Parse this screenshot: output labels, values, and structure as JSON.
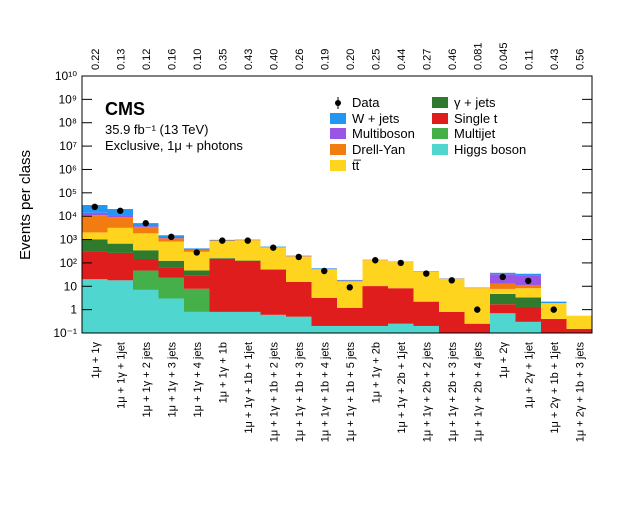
{
  "chart_data": {
    "type": "bar",
    "stacked": true,
    "log_y": true,
    "experiment": "CMS",
    "luminosity": "35.9 fb⁻¹ (13 TeV)",
    "selection": "Exclusive, 1μ + photons",
    "ylabel": "Events per class",
    "categories": [
      "1μ + 1γ",
      "1μ + 1γ + 1jet",
      "1μ + 1γ + 2 jets",
      "1μ + 1γ + 3 jets",
      "1μ + 1γ + 4 jets",
      "1μ + 1γ + 1b",
      "1μ + 1γ + 1b + 1jet",
      "1μ + 1γ + 1b + 2 jets",
      "1μ + 1γ + 1b + 3 jets",
      "1μ + 1γ + 1b + 4 jets",
      "1μ + 1γ + 1b + 5 jets",
      "1μ + 1γ + 2b",
      "1μ + 1γ + 2b + 1jet",
      "1μ + 1γ + 2b + 2 jets",
      "1μ + 1γ + 2b + 3 jets",
      "1μ + 1γ + 2b + 4 jets",
      "1μ + 2γ",
      "1μ + 2γ + 1jet",
      "1μ + 2γ + 1b + 1jet",
      "1μ + 2γ + 1b + 3 jets"
    ],
    "top_labels": [
      "0.22",
      "0.13",
      "0.12",
      "0.16",
      "0.10",
      "0.35",
      "0.43",
      "0.40",
      "0.26",
      "0.19",
      "0.20",
      "0.25",
      "0.44",
      "0.27",
      "0.46",
      "0.081",
      "0.045",
      "0.11",
      "0.43",
      "0.56"
    ],
    "series": [
      {
        "name": "Higgs boson",
        "color": "#4fd6cf",
        "values": [
          20,
          18,
          7,
          3,
          0.8,
          0.8,
          0.8,
          0.6,
          0.5,
          0.2,
          0.2,
          0.2,
          0.25,
          0.2,
          0.1,
          0.05,
          0.7,
          0.3,
          0.1,
          0.05
        ]
      },
      {
        "name": "Multijet",
        "color": "#45b04a",
        "values": [
          null,
          null,
          40,
          20,
          7,
          null,
          null,
          null,
          null,
          null,
          null,
          null,
          null,
          null,
          null,
          null,
          null,
          null,
          null,
          null
        ]
      },
      {
        "name": "Single t",
        "color": "#e01d1d",
        "values": [
          300,
          250,
          100,
          40,
          20,
          150,
          120,
          50,
          15,
          3,
          1,
          10,
          8,
          2,
          0.7,
          0.2,
          1,
          1,
          0.3,
          0.1
        ]
      },
      {
        "name": "γ + jets",
        "color": "#2f7a2c",
        "values": [
          700,
          400,
          200,
          60,
          20,
          10,
          5,
          3,
          null,
          null,
          null,
          null,
          null,
          null,
          null,
          null,
          3,
          2,
          null,
          null
        ]
      },
      {
        "name": "tt̅",
        "color": "#ffd41f",
        "values": [
          1000,
          2500,
          1500,
          700,
          250,
          700,
          800,
          400,
          170,
          50,
          15,
          120,
          100,
          40,
          20,
          8,
          3,
          5,
          1.5,
          0.4
        ]
      },
      {
        "name": "Drell-Yan",
        "color": "#f27c10",
        "values": [
          9000,
          6000,
          1500,
          300,
          60,
          50,
          40,
          20,
          8,
          2,
          1,
          3,
          2,
          1,
          0.5,
          0.3,
          5,
          3,
          null,
          null
        ]
      },
      {
        "name": "Multiboson",
        "color": "#9b55e6",
        "values": [
          3000,
          2000,
          400,
          100,
          20,
          10,
          10,
          5,
          3,
          1,
          0.5,
          1,
          1,
          0.5,
          null,
          null,
          20,
          18,
          null,
          null
        ]
      },
      {
        "name": "W + jets",
        "color": "#2196f3",
        "values": [
          16000,
          9000,
          1300,
          300,
          40,
          50,
          30,
          20,
          8,
          3,
          1,
          3,
          3,
          1,
          0.5,
          0.3,
          5,
          5,
          0.3,
          null
        ]
      }
    ],
    "data": {
      "name": "Data",
      "color": "#000000",
      "values": [
        25000,
        17000,
        5000,
        1300,
        280,
        900,
        900,
        450,
        180,
        45,
        9,
        130,
        100,
        35,
        18,
        1,
        25,
        17,
        1,
        null
      ]
    },
    "ylim": [
      0.1,
      10000000000
    ],
    "yticks": [
      {
        "value": 0.1,
        "label": "10⁻¹"
      },
      1,
      10,
      {
        "value": 100,
        "label": "10²"
      },
      {
        "value": 1000,
        "label": "10³"
      },
      {
        "value": 10000,
        "label": "10⁴"
      },
      {
        "value": 100000,
        "label": "10⁵"
      },
      {
        "value": 1000000,
        "label": "10⁶"
      },
      {
        "value": 10000000,
        "label": "10⁷"
      },
      {
        "value": 100000000,
        "label": "10⁸"
      },
      {
        "value": 1000000000,
        "label": "10⁹"
      },
      {
        "value": 10000000000,
        "label": "10¹⁰"
      }
    ]
  }
}
